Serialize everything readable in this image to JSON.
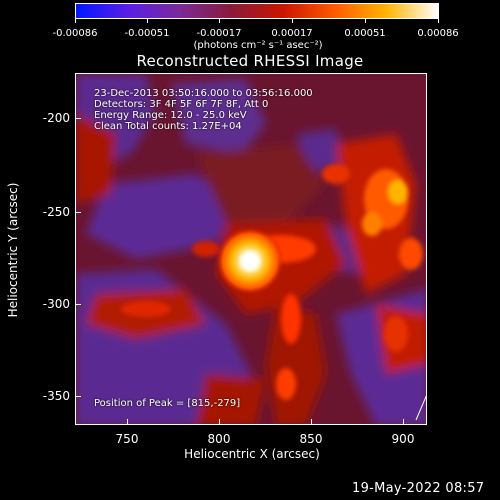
{
  "colorbar": {
    "ticks": [
      "-0.00086",
      "-0.00051",
      "-0.00017",
      "0.00017",
      "0.00051",
      "0.00086"
    ],
    "units": "(photons cm⁻² s⁻¹ asec⁻²)",
    "colors": [
      "#0018ff",
      "#5a1ee6",
      "#7a2a9a",
      "#8a1a3a",
      "#cc1500",
      "#ff5a00",
      "#ffb400",
      "#ffffff"
    ]
  },
  "plot": {
    "title": "Reconstructed RHESSI Image",
    "annotations": [
      "23-Dec-2013 03:50:16.000 to 03:56:16.000",
      "Detectors: 3F 4F 5F 6F 7F 8F, Att 0",
      "Energy Range: 12.0 - 25.0 keV",
      "Clean    Total counts: 1.27E+04"
    ],
    "peak_label": "Position of Peak = [815,-279]",
    "xlabel": "Heliocentric X (arcsec)",
    "ylabel": "Heliocentric Y (arcsec)",
    "xticks": [
      "750",
      "800",
      "850",
      "900"
    ],
    "yticks": [
      "-200",
      "-250",
      "-300",
      "-350"
    ]
  },
  "datestamp": "19-May-2022 08:57",
  "image_data": {
    "x_range": [
      722,
      912
    ],
    "y_range": [
      -373,
      -182
    ],
    "peak": [
      815,
      -279
    ],
    "peak_flux_max": 0.00086,
    "flux_min": -0.00086
  }
}
